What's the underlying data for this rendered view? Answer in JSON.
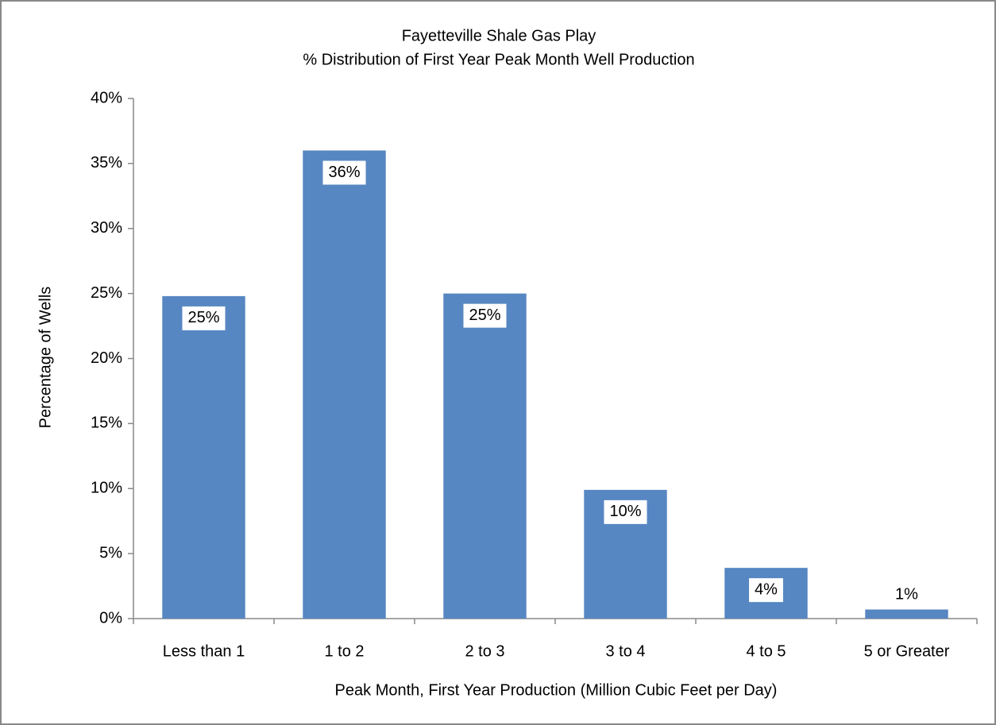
{
  "chart_data": {
    "type": "bar",
    "title": "Fayetteville Shale Gas Play",
    "subtitle": "% Distribution of First Year Peak Month Well Production",
    "y_label": "Percentage of Wells",
    "x_label": "Peak Month, First Year Production (Million Cubic Feet per Day)",
    "categories": [
      "Less than 1",
      "1 to 2",
      "2 to 3",
      "3 to 4",
      "4 to 5",
      "5 or Greater"
    ],
    "values": [
      24.8,
      36.0,
      25.0,
      9.9,
      3.9,
      0.7
    ],
    "value_labels": [
      "25%",
      "36%",
      "25%",
      "10%",
      "4%",
      "1%"
    ],
    "color": "#5787c2",
    "ylim": [
      0,
      40
    ],
    "yticks": [
      {
        "value": 0,
        "label": "0%"
      },
      {
        "value": 5,
        "label": "5%"
      },
      {
        "value": 10,
        "label": "10%"
      },
      {
        "value": 15,
        "label": "15%"
      },
      {
        "value": 20,
        "label": "20%"
      },
      {
        "value": 25,
        "label": "25%"
      },
      {
        "value": 30,
        "label": "30%"
      },
      {
        "value": 35,
        "label": "35%"
      },
      {
        "value": 40,
        "label": "40%"
      }
    ]
  }
}
